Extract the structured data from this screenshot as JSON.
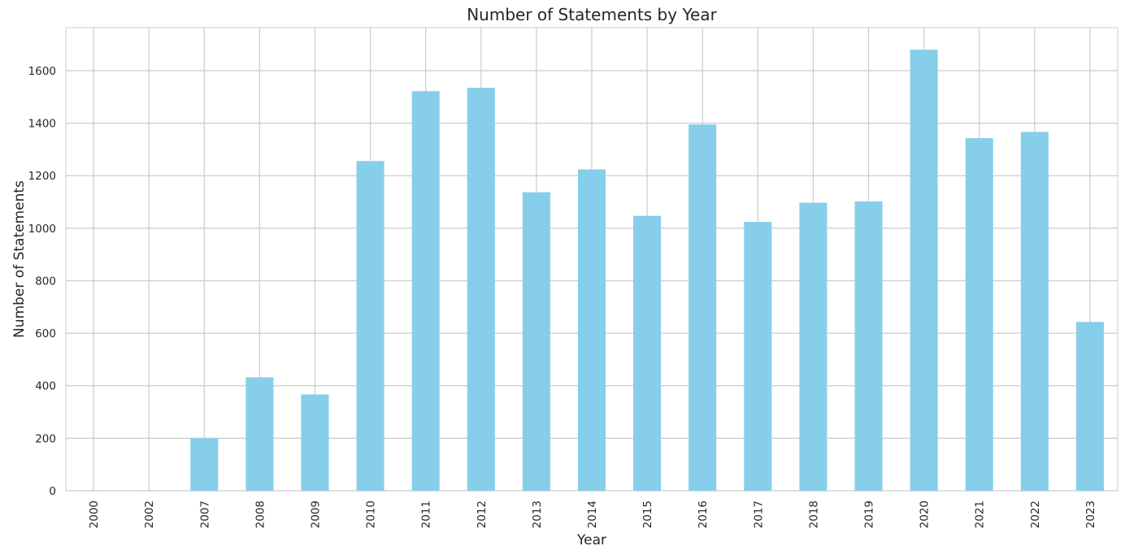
{
  "chart_data": {
    "type": "bar",
    "title": "Number of Statements by Year",
    "xlabel": "Year",
    "ylabel": "Number of Statements",
    "categories": [
      "2000",
      "2002",
      "2007",
      "2008",
      "2009",
      "2010",
      "2011",
      "2012",
      "2013",
      "2014",
      "2015",
      "2016",
      "2017",
      "2018",
      "2019",
      "2020",
      "2021",
      "2022",
      "2023"
    ],
    "series": [
      {
        "values": [
          1,
          1,
          200,
          432,
          367,
          1256,
          1522,
          1535,
          1137,
          1224,
          1047,
          1395,
          1024,
          1097,
          1102,
          1680,
          1343,
          1367,
          643
        ]
      }
    ],
    "ylim": [
      0,
      1764
    ],
    "yticks": [
      0,
      200,
      400,
      600,
      800,
      1000,
      1200,
      1400,
      1600
    ],
    "bar_color": "#87ceeb",
    "grid": true,
    "grid_color": "#cccccc",
    "legend": "none"
  }
}
